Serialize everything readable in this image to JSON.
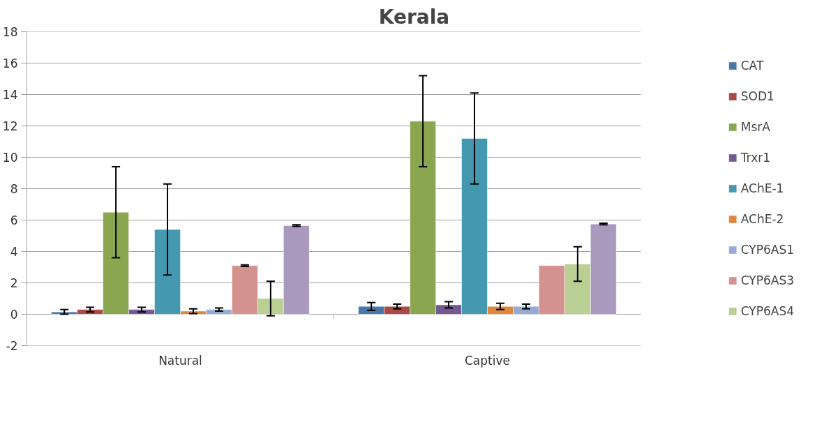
{
  "chart_data": {
    "type": "bar",
    "title": "Kerala",
    "categories": [
      "Natural",
      "Captive"
    ],
    "ylim": [
      -2,
      18
    ],
    "yticks": [
      -2,
      0,
      2,
      4,
      6,
      8,
      10,
      12,
      14,
      16,
      18
    ],
    "grid": "y",
    "legend": "right",
    "series": [
      {
        "name": "CAT",
        "color": "#4a76aa",
        "values": [
          0.15,
          0.5
        ],
        "errors": [
          0.15,
          0.25
        ]
      },
      {
        "name": "SOD1",
        "color": "#aa4a46",
        "values": [
          0.3,
          0.5
        ],
        "errors": [
          0.15,
          0.15
        ]
      },
      {
        "name": "MsrA",
        "color": "#8aa64e",
        "values": [
          6.5,
          12.3
        ],
        "errors": [
          2.9,
          2.9
        ]
      },
      {
        "name": "Trxr1",
        "color": "#73598f",
        "values": [
          0.3,
          0.6
        ],
        "errors": [
          0.15,
          0.2
        ]
      },
      {
        "name": "AChE-1",
        "color": "#4499b0",
        "values": [
          5.4,
          11.2
        ],
        "errors": [
          2.9,
          2.9
        ]
      },
      {
        "name": "AChE-2",
        "color": "#de8640",
        "values": [
          0.2,
          0.5
        ],
        "errors": [
          0.15,
          0.2
        ]
      },
      {
        "name": "CYP6AS1",
        "color": "#95abd3",
        "values": [
          0.3,
          0.5
        ],
        "errors": [
          0.1,
          0.15
        ]
      },
      {
        "name": "CYP6AS3",
        "color": "#d39290",
        "values": [
          3.1,
          3.1
        ],
        "errors": [
          0.05,
          null
        ]
      },
      {
        "name": "CYP6AS4",
        "color": "#b9cf94",
        "values": [
          1.0,
          3.2
        ],
        "errors": [
          1.1,
          1.1
        ]
      },
      {
        "color": "#a99abd",
        "values": [
          5.65,
          5.75
        ],
        "errors": [
          0.05,
          0.05
        ]
      }
    ]
  }
}
